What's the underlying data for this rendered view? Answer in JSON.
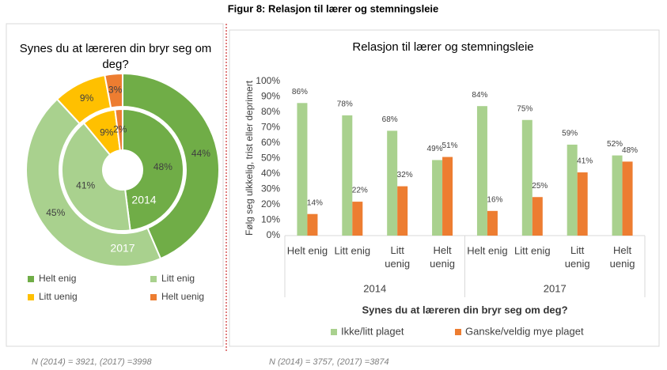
{
  "title": "Figur 8: Relasjon til lærer og stemningsleie",
  "chart_data": [
    {
      "type": "donut",
      "title": "Synes du at læreren din bryr seg om deg?",
      "categories": [
        "Helt enig",
        "Litt enig",
        "Litt uenig",
        "Helt uenig"
      ],
      "colors": [
        "#70ad47",
        "#a9d18e",
        "#ffc000",
        "#ed7d31"
      ],
      "series": [
        {
          "name": "2014",
          "values": [
            48,
            41,
            9,
            2
          ],
          "value_labels": [
            "48%",
            "41%",
            "9%",
            "2%"
          ]
        },
        {
          "name": "2017",
          "values": [
            44,
            45,
            9,
            3
          ],
          "value_labels": [
            "44%",
            "45%",
            "9%",
            "3%"
          ]
        }
      ],
      "legend": "bottom",
      "footnote": "N (2014) = 3921, (2017) =3998"
    },
    {
      "type": "bar",
      "title": "Relasjon til lærer og stemningsleie",
      "y_label": "Følg seg ulkkelig, trist eller deprimert",
      "x_label": "Synes du at læreren din bryr seg om deg?",
      "groups": [
        "2014",
        "2017"
      ],
      "categories": [
        "Helt enig",
        "Litt enig",
        "Litt uenig",
        "Helt uenig",
        "Helt enig",
        "Litt enig",
        "Litt uenig",
        "Helt uenig"
      ],
      "series": [
        {
          "name": "Ikke/litt plaget",
          "color": "#a9d18e",
          "values": [
            86,
            78,
            68,
            49,
            84,
            75,
            59,
            52
          ],
          "value_labels": [
            "86%",
            "78%",
            "68%",
            "49%",
            "84%",
            "75%",
            "59%",
            "52%"
          ]
        },
        {
          "name": "Ganske/veldig mye plaget",
          "color": "#ed7d31",
          "values": [
            14,
            22,
            32,
            51,
            16,
            25,
            41,
            48
          ],
          "value_labels": [
            "14%",
            "22%",
            "32%",
            "51%",
            "16%",
            "25%",
            "41%",
            "48%"
          ]
        }
      ],
      "ylim": [
        0,
        100
      ],
      "yticks": [
        {
          "value": 0,
          "label": "0%"
        },
        {
          "value": 10,
          "label": "10%"
        },
        {
          "value": 20,
          "label": "20%"
        },
        {
          "value": 30,
          "label": "30%"
        },
        {
          "value": 40,
          "label": "40%"
        },
        {
          "value": 50,
          "label": "50%"
        },
        {
          "value": 60,
          "label": "60%"
        },
        {
          "value": 70,
          "label": "70%"
        },
        {
          "value": 80,
          "label": "80%"
        },
        {
          "value": 90,
          "label": "90%"
        },
        {
          "value": 100,
          "label": "100%"
        }
      ],
      "grid": false,
      "legend": "bottom",
      "footnote": "N (2014) = 3757, (2017) =3874"
    }
  ]
}
